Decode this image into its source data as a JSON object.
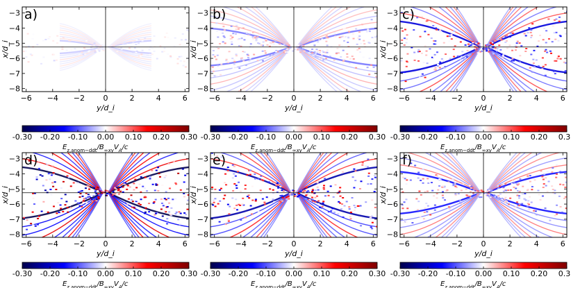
{
  "figure": {
    "colormap": "seismic",
    "colors": {
      "neg_end": "#00004c",
      "neg_mid": "#0000ff",
      "zero": "#ffffff",
      "pos_mid": "#ff0000",
      "pos_end": "#800000",
      "separatrix": "#000000"
    },
    "colorbar": {
      "ticks": [
        -0.3,
        -0.2,
        -0.1,
        0.0,
        0.1,
        0.2,
        0.3
      ],
      "tick_labels": [
        "-0.30",
        "-0.20",
        "-0.10",
        "0.00",
        "0.10",
        "0.20",
        "0.30"
      ],
      "range": [
        -0.3,
        0.3
      ]
    },
    "xlabel": "y/d_i",
    "ylabel": "x/d_i",
    "x_ticks": [
      -6,
      -4,
      -2,
      0,
      2,
      4,
      6
    ],
    "x_tick_labels": [
      "−6",
      "−4",
      "−2",
      "0",
      "2",
      "4",
      "6"
    ],
    "y_ticks": [
      -3,
      -4,
      -5,
      -6,
      -7,
      -8
    ],
    "y_tick_labels": [
      "−3",
      "−4",
      "−5",
      "−6",
      "−7",
      "−8"
    ]
  },
  "chart_data": [
    {
      "type": "heatmap",
      "panel": "a)",
      "quantity": "E_z,anom-ddt / B_0xy V_A / c",
      "xlim": [
        -6.3,
        6.3
      ],
      "ylim": [
        -8.2,
        -2.6
      ],
      "crosshair": {
        "y": 0.0,
        "x": -5.25
      },
      "x_point": [
        0.0,
        -5.25
      ],
      "separatrix_opening": 0.25,
      "island_extent": 0.55,
      "amplitude": 0.03,
      "cbar_label_mode": "plain"
    },
    {
      "type": "heatmap",
      "panel": "b)",
      "quantity": "E_z,anom-ddt / B_0xy V_A / c",
      "xlim": [
        -6.3,
        6.3
      ],
      "ylim": [
        -8.2,
        -2.6
      ],
      "crosshair": {
        "y": 0.0,
        "x": -5.25
      },
      "x_point": [
        0.0,
        -5.25
      ],
      "separatrix_opening": 0.4,
      "island_extent": 1.0,
      "amplitude": 0.08,
      "cbar_label_mode": "B"
    },
    {
      "type": "heatmap",
      "panel": "c)",
      "quantity": "E_z,anom-ddt / B_0xy V_A / c",
      "xlim": [
        -6.3,
        6.3
      ],
      "ylim": [
        -8.2,
        -2.6
      ],
      "crosshair": {
        "y": 0.0,
        "x": -5.25
      },
      "x_point": [
        0.0,
        -5.25
      ],
      "separatrix_opening": 0.55,
      "island_extent": 1.0,
      "amplitude": 0.18,
      "cbar_label_mode": "plain"
    },
    {
      "type": "heatmap",
      "panel": "d)",
      "quantity": "E_z,anom-ddt / B_0xy V_A / c",
      "xlim": [
        -6.3,
        6.3
      ],
      "ylim": [
        -8.2,
        -2.6
      ],
      "crosshair": {
        "y": 0.0,
        "x": -5.25
      },
      "x_point": [
        0.0,
        -5.25
      ],
      "separatrix_opening": 0.55,
      "island_extent": 1.0,
      "amplitude": 0.3,
      "cbar_label_mode": "plain"
    },
    {
      "type": "heatmap",
      "panel": "e)",
      "quantity": "E_z,anom-ddt / B_0xy V_A / c",
      "xlim": [
        -6.3,
        6.3
      ],
      "ylim": [
        -8.2,
        -2.6
      ],
      "crosshair": {
        "y": 0.0,
        "x": -5.25
      },
      "x_point": [
        0.0,
        -5.25
      ],
      "separatrix_opening": 0.55,
      "island_extent": 1.0,
      "amplitude": 0.22,
      "cbar_label_mode": "B"
    },
    {
      "type": "heatmap",
      "panel": "f)",
      "quantity": "E_z,anom-ddt / B_0xy V_A / c",
      "xlim": [
        -6.3,
        6.3
      ],
      "ylim": [
        -8.2,
        -2.6
      ],
      "crosshair": {
        "y": 0.0,
        "x": -5.25
      },
      "x_point": [
        0.0,
        -5.25
      ],
      "separatrix_opening": 0.45,
      "island_extent": 1.0,
      "amplitude": 0.14,
      "cbar_label_mode": "plain"
    }
  ]
}
